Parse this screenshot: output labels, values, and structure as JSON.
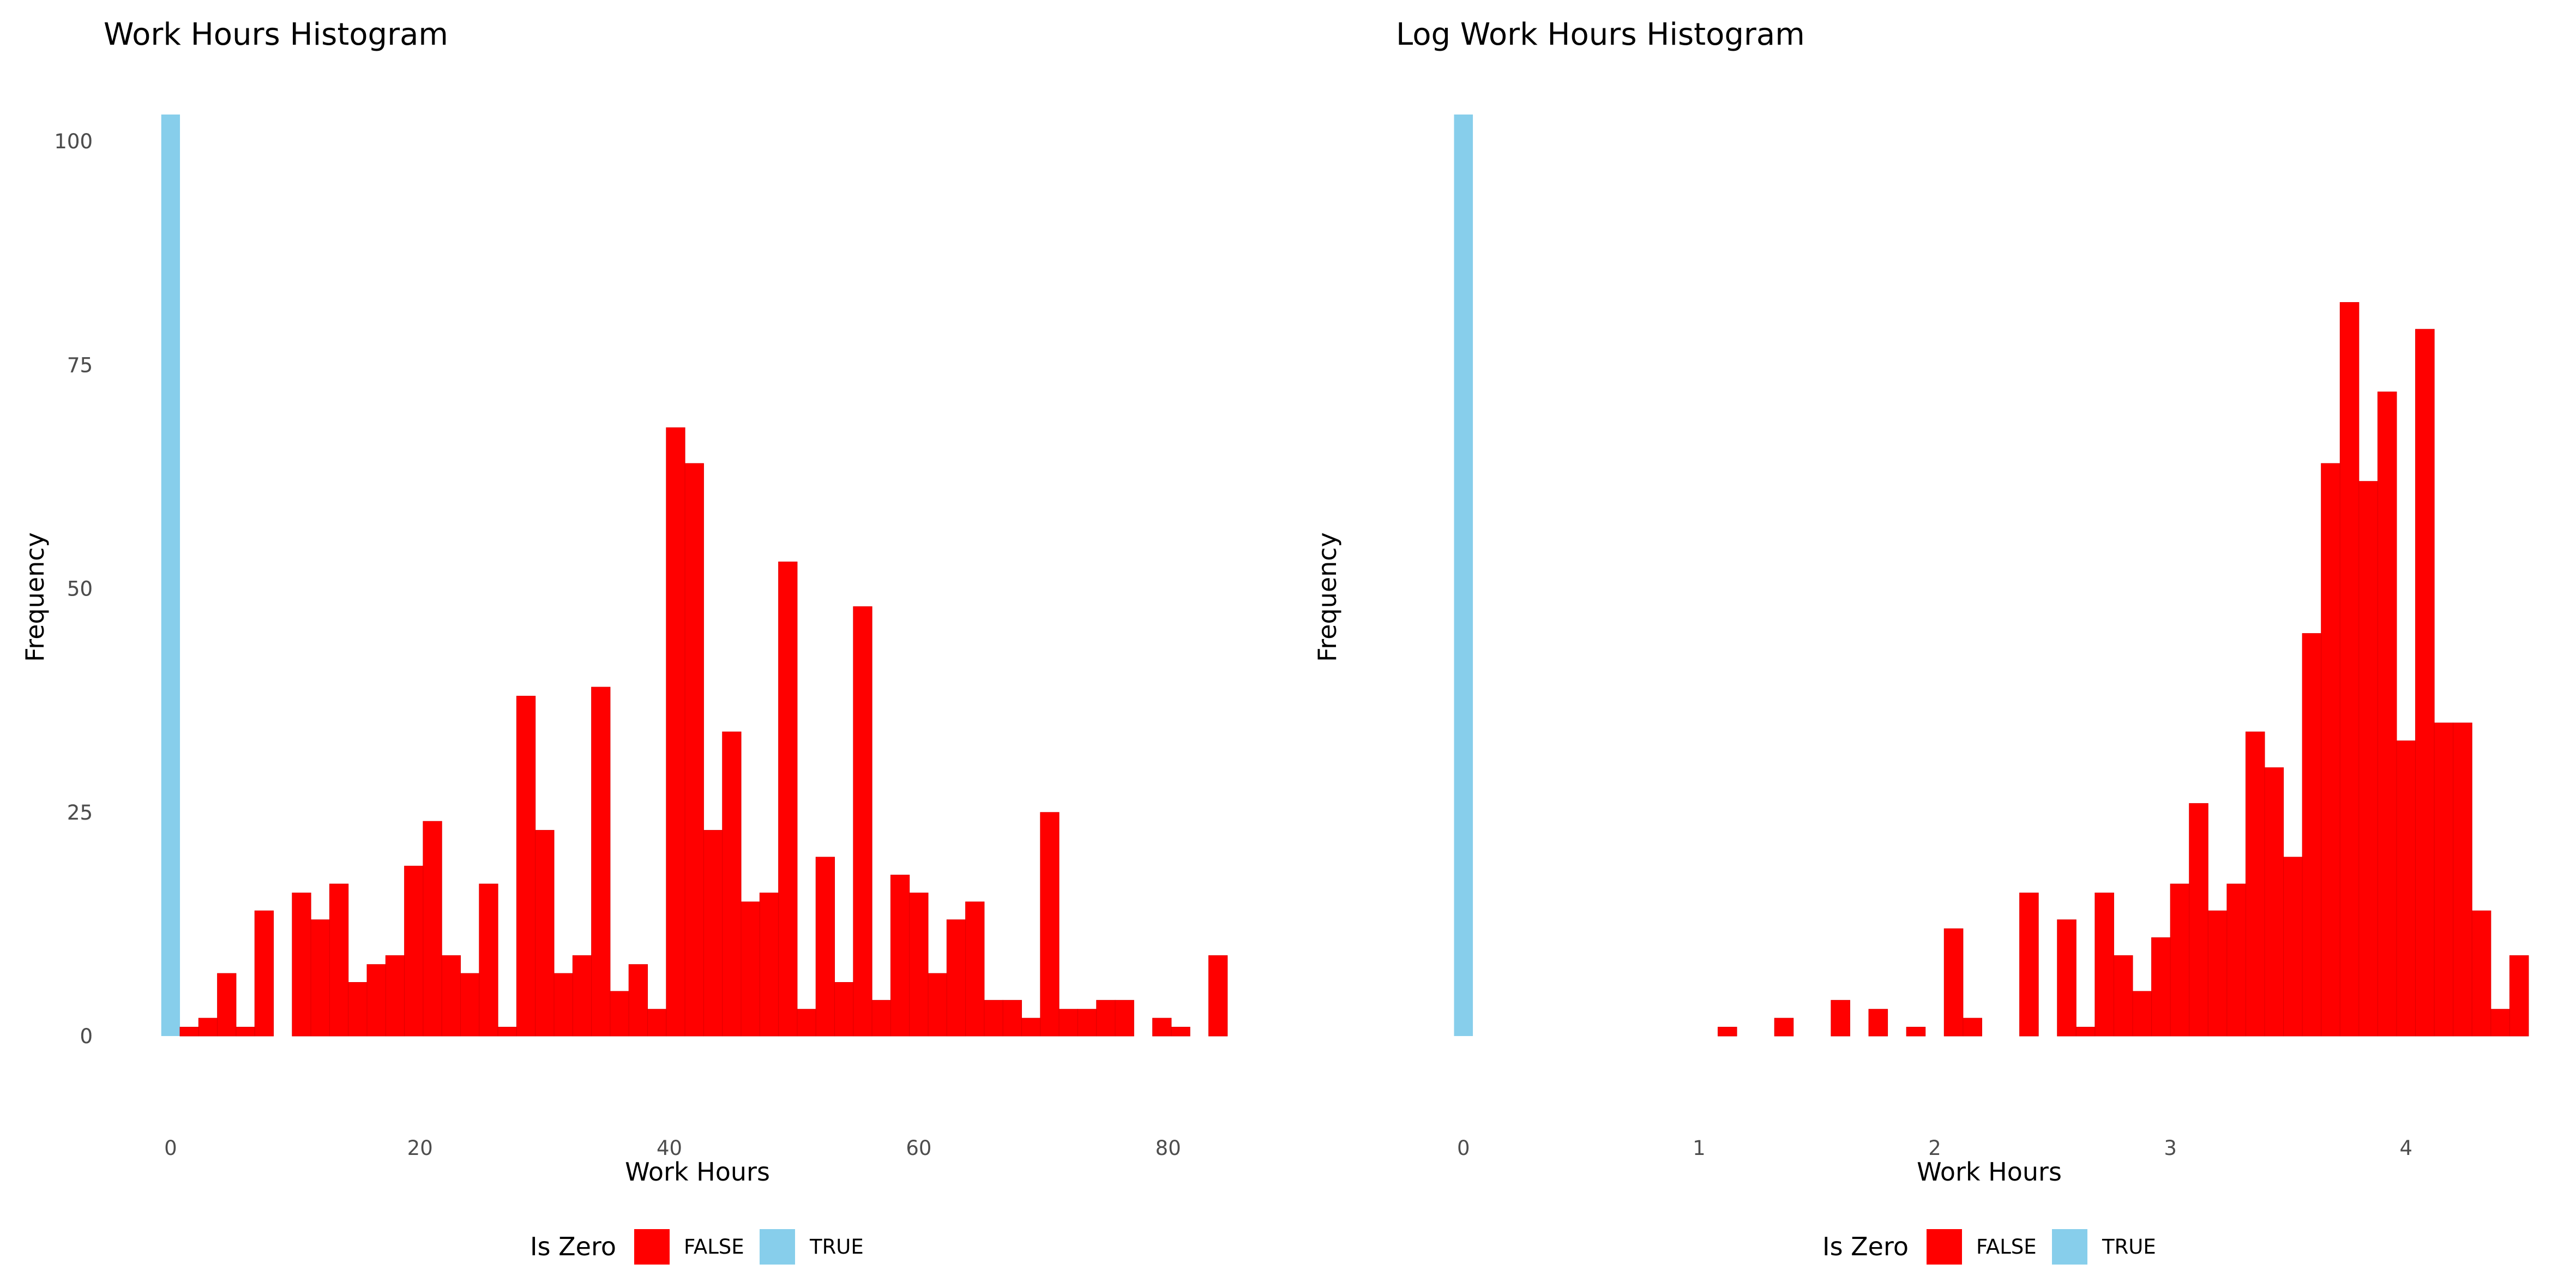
{
  "colors": {
    "false": "#FF0000",
    "true": "#87CEEB"
  },
  "chart_data": [
    {
      "type": "bar",
      "title": "Work Hours Histogram",
      "xlabel": "Work Hours",
      "ylabel": "Frequency",
      "xlim": [
        -1.0,
        85.5
      ],
      "ylim": [
        -5,
        103
      ],
      "xticks": [
        "0",
        "20",
        "40",
        "60",
        "80"
      ],
      "xtick_values": [
        0,
        20,
        40,
        60,
        80
      ],
      "yticks": [
        "0",
        "25",
        "50",
        "75",
        "100"
      ],
      "ytick_values": [
        0,
        25,
        50,
        75,
        100
      ],
      "bin_width": 1.5,
      "legend": {
        "title": "Is Zero",
        "position": "bottom",
        "entries": [
          "FALSE",
          "TRUE"
        ]
      },
      "series": [
        {
          "name": "TRUE",
          "color": "#87CEEB",
          "bins": [
            [
              0,
              103
            ]
          ]
        },
        {
          "name": "FALSE",
          "color": "#FF0000",
          "bins": [
            [
              1.5,
              1
            ],
            [
              3.0,
              2
            ],
            [
              4.5,
              7
            ],
            [
              6.0,
              1
            ],
            [
              7.5,
              14
            ],
            [
              10.5,
              16
            ],
            [
              12.0,
              13
            ],
            [
              13.5,
              17
            ],
            [
              15.0,
              6
            ],
            [
              16.5,
              8
            ],
            [
              18.0,
              9
            ],
            [
              19.5,
              19
            ],
            [
              21.0,
              24
            ],
            [
              22.5,
              9
            ],
            [
              24.0,
              7
            ],
            [
              25.5,
              17
            ],
            [
              27.0,
              1
            ],
            [
              28.5,
              38
            ],
            [
              30.0,
              23
            ],
            [
              31.5,
              7
            ],
            [
              33.0,
              9
            ],
            [
              34.5,
              39
            ],
            [
              36.0,
              5
            ],
            [
              37.5,
              8
            ],
            [
              39.0,
              3
            ],
            [
              40.5,
              68
            ],
            [
              42.0,
              64
            ],
            [
              43.5,
              23
            ],
            [
              45.0,
              34
            ],
            [
              46.5,
              15
            ],
            [
              48.0,
              16
            ],
            [
              49.5,
              53
            ],
            [
              51.0,
              3
            ],
            [
              52.5,
              20
            ],
            [
              54.0,
              6
            ],
            [
              55.5,
              48
            ],
            [
              57.0,
              4
            ],
            [
              58.5,
              18
            ],
            [
              60.0,
              16
            ],
            [
              61.5,
              7
            ],
            [
              63.0,
              13
            ],
            [
              64.5,
              15
            ],
            [
              66.0,
              4
            ],
            [
              67.5,
              4
            ],
            [
              69.0,
              2
            ],
            [
              70.5,
              25
            ],
            [
              72.0,
              3
            ],
            [
              73.5,
              3
            ],
            [
              75.0,
              4
            ],
            [
              76.5,
              4
            ],
            [
              79.5,
              2
            ],
            [
              81.0,
              1
            ],
            [
              84.0,
              9
            ]
          ]
        }
      ]
    },
    {
      "type": "bar",
      "title": "Log Work Hours Histogram",
      "xlabel": "Work Hours",
      "ylabel": "Frequency",
      "xlim": [
        -0.055,
        4.52
      ],
      "ylim": [
        -5,
        103
      ],
      "xticks": [
        "0",
        "1",
        "2",
        "3",
        "4"
      ],
      "xtick_values": [
        0,
        1,
        2,
        3,
        4
      ],
      "yticks": [
        "0",
        "25",
        "50",
        "75",
        "100"
      ],
      "ytick_values": [
        0,
        25,
        50,
        75,
        100
      ],
      "bin_width": 0.08,
      "legend": {
        "title": "Is Zero",
        "position": "bottom",
        "entries": [
          "FALSE",
          "TRUE"
        ]
      },
      "series": [
        {
          "name": "TRUE",
          "color": "#87CEEB",
          "bins": [
            [
              0,
              103
            ]
          ]
        },
        {
          "name": "FALSE",
          "color": "#FF0000",
          "bins": [
            [
              1.12,
              1
            ],
            [
              1.36,
              2
            ],
            [
              1.6,
              4
            ],
            [
              1.76,
              3
            ],
            [
              1.92,
              1
            ],
            [
              2.08,
              12
            ],
            [
              2.16,
              2
            ],
            [
              2.4,
              16
            ],
            [
              2.56,
              13
            ],
            [
              2.64,
              1
            ],
            [
              2.72,
              16
            ],
            [
              2.8,
              9
            ],
            [
              2.88,
              5
            ],
            [
              2.96,
              11
            ],
            [
              3.04,
              17
            ],
            [
              3.12,
              26
            ],
            [
              3.2,
              14
            ],
            [
              3.28,
              17
            ],
            [
              3.36,
              34
            ],
            [
              3.44,
              30
            ],
            [
              3.52,
              20
            ],
            [
              3.6,
              45
            ],
            [
              3.68,
              64
            ],
            [
              3.76,
              82
            ],
            [
              3.84,
              62
            ],
            [
              3.92,
              72
            ],
            [
              4.0,
              33
            ],
            [
              4.08,
              79
            ],
            [
              4.16,
              35
            ],
            [
              4.24,
              35
            ],
            [
              4.32,
              14
            ],
            [
              4.4,
              3
            ],
            [
              4.48,
              9
            ]
          ]
        }
      ]
    }
  ]
}
